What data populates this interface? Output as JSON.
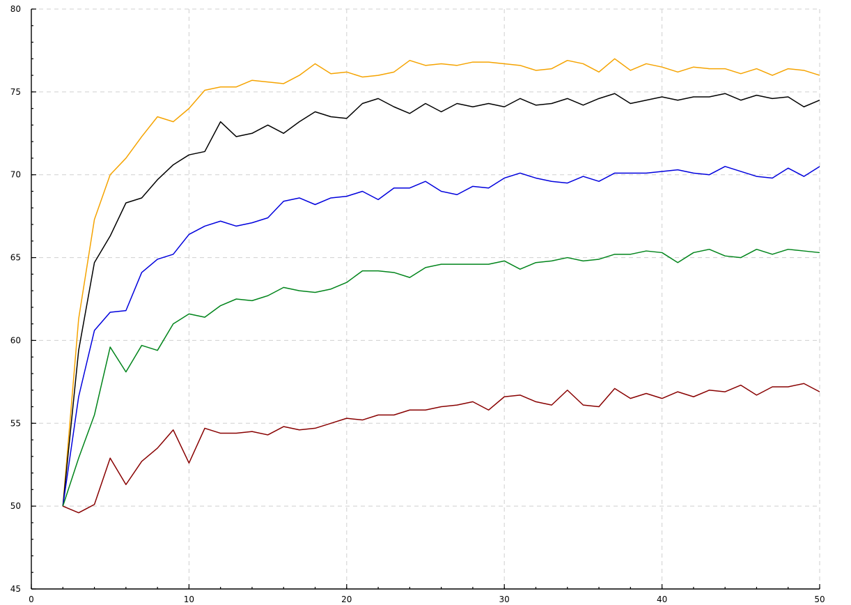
{
  "chart_data": {
    "type": "line",
    "title": "",
    "xlabel": "",
    "ylabel": "",
    "xlim": [
      0,
      50
    ],
    "ylim": [
      45,
      80
    ],
    "x_ticks": [
      0,
      10,
      20,
      30,
      40,
      50
    ],
    "y_ticks": [
      45,
      50,
      55,
      60,
      65,
      70,
      75,
      80
    ],
    "x_minor_step": 2,
    "y_minor_step": 1,
    "grid": true,
    "legend": "none",
    "x": [
      2,
      3,
      4,
      5,
      6,
      7,
      8,
      9,
      10,
      11,
      12,
      13,
      14,
      15,
      16,
      17,
      18,
      19,
      20,
      21,
      22,
      23,
      24,
      25,
      26,
      27,
      28,
      29,
      30,
      31,
      32,
      33,
      34,
      35,
      36,
      37,
      38,
      39,
      40,
      41,
      42,
      43,
      44,
      45,
      46,
      47,
      48,
      49,
      50
    ],
    "series": [
      {
        "color": "#f5a300",
        "values": [
          50.0,
          61.3,
          67.3,
          70.0,
          71.0,
          72.3,
          73.5,
          73.2,
          74.0,
          75.1,
          75.3,
          75.3,
          75.7,
          75.6,
          75.5,
          76.0,
          76.7,
          76.1,
          76.2,
          75.9,
          76.0,
          76.2,
          76.9,
          76.6,
          76.7,
          76.6,
          76.8,
          76.8,
          76.7,
          76.6,
          76.3,
          76.4,
          76.9,
          76.7,
          76.2,
          77.0,
          76.3,
          76.7,
          76.5,
          76.2,
          76.5,
          76.4,
          76.4,
          76.1,
          76.4,
          76.0,
          76.4,
          76.3,
          76.0
        ]
      },
      {
        "color": "#000000",
        "values": [
          50.0,
          59.4,
          64.7,
          66.3,
          68.3,
          68.6,
          69.7,
          70.6,
          71.2,
          71.4,
          73.2,
          72.3,
          72.5,
          73.0,
          72.5,
          73.2,
          73.8,
          73.5,
          73.4,
          74.3,
          74.6,
          74.1,
          73.7,
          74.3,
          73.8,
          74.3,
          74.1,
          74.3,
          74.1,
          74.6,
          74.2,
          74.3,
          74.6,
          74.2,
          74.6,
          74.9,
          74.3,
          74.5,
          74.7,
          74.5,
          74.7,
          74.7,
          74.9,
          74.5,
          74.8,
          74.6,
          74.7,
          74.1,
          74.5
        ]
      },
      {
        "color": "#0000dd",
        "values": [
          50.0,
          56.6,
          60.6,
          61.7,
          61.8,
          64.1,
          64.9,
          65.2,
          66.4,
          66.9,
          67.2,
          66.9,
          67.1,
          67.4,
          68.4,
          68.6,
          68.2,
          68.6,
          68.7,
          69.0,
          68.5,
          69.2,
          69.2,
          69.6,
          69.0,
          68.8,
          69.3,
          69.2,
          69.8,
          70.1,
          69.8,
          69.6,
          69.5,
          69.9,
          69.6,
          70.1,
          70.1,
          70.1,
          70.2,
          70.3,
          70.1,
          70.0,
          70.5,
          70.2,
          69.9,
          69.8,
          70.4,
          69.9,
          70.5
        ]
      },
      {
        "color": "#00841a",
        "values": [
          50.0,
          52.9,
          55.5,
          59.6,
          58.1,
          59.7,
          59.4,
          61.0,
          61.6,
          61.4,
          62.1,
          62.5,
          62.4,
          62.7,
          63.2,
          63.0,
          62.9,
          63.1,
          63.5,
          64.2,
          64.2,
          64.1,
          63.8,
          64.4,
          64.6,
          64.6,
          64.6,
          64.6,
          64.8,
          64.3,
          64.7,
          64.8,
          65.0,
          64.8,
          64.9,
          65.2,
          65.2,
          65.4,
          65.3,
          64.7,
          65.3,
          65.5,
          65.1,
          65.0,
          65.5,
          65.2,
          65.5,
          65.4,
          65.3
        ]
      },
      {
        "color": "#880000",
        "values": [
          50.0,
          49.6,
          50.1,
          52.9,
          51.3,
          52.7,
          53.5,
          54.6,
          52.6,
          54.7,
          54.4,
          54.4,
          54.5,
          54.3,
          54.8,
          54.6,
          54.7,
          55.0,
          55.3,
          55.2,
          55.5,
          55.5,
          55.8,
          55.8,
          56.0,
          56.1,
          56.3,
          55.8,
          56.6,
          56.7,
          56.3,
          56.1,
          57.0,
          56.1,
          56.0,
          57.1,
          56.5,
          56.8,
          56.5,
          56.9,
          56.6,
          57.0,
          56.9,
          57.3,
          56.7,
          57.2,
          57.2,
          57.4,
          56.9
        ]
      }
    ]
  }
}
